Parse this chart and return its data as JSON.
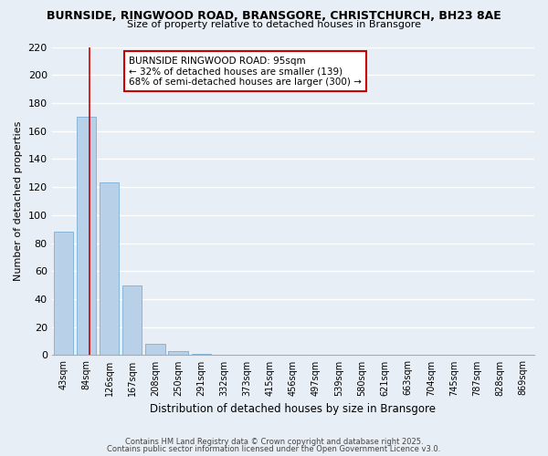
{
  "title_line1": "BURNSIDE, RINGWOOD ROAD, BRANSGORE, CHRISTCHURCH, BH23 8AE",
  "title_line2": "Size of property relative to detached houses in Bransgore",
  "categories": [
    "43sqm",
    "84sqm",
    "126sqm",
    "167sqm",
    "208sqm",
    "250sqm",
    "291sqm",
    "332sqm",
    "373sqm",
    "415sqm",
    "456sqm",
    "497sqm",
    "539sqm",
    "580sqm",
    "621sqm",
    "663sqm",
    "704sqm",
    "745sqm",
    "787sqm",
    "828sqm",
    "869sqm"
  ],
  "values": [
    88,
    170,
    123,
    50,
    8,
    3,
    1,
    0,
    0,
    0,
    0,
    0,
    0,
    0,
    0,
    0,
    0,
    0,
    0,
    0,
    0
  ],
  "bar_color": "#b8d0e8",
  "bar_edge_color": "#7aafd4",
  "background_color": "#e8eef5",
  "grid_color": "#ffffff",
  "ylabel": "Number of detached properties",
  "xlabel": "Distribution of detached houses by size in Bransgore",
  "ylim": [
    0,
    220
  ],
  "yticks": [
    0,
    20,
    40,
    60,
    80,
    100,
    120,
    140,
    160,
    180,
    200,
    220
  ],
  "vline_x": 1.15,
  "vline_color": "#cc0000",
  "annotation_text": "BURNSIDE RINGWOOD ROAD: 95sqm\n← 32% of detached houses are smaller (139)\n68% of semi-detached houses are larger (300) →",
  "annotation_box_color": "#ffffff",
  "annotation_box_edge_color": "#cc0000",
  "footnote1": "Contains HM Land Registry data © Crown copyright and database right 2025.",
  "footnote2": "Contains public sector information licensed under the Open Government Licence v3.0."
}
